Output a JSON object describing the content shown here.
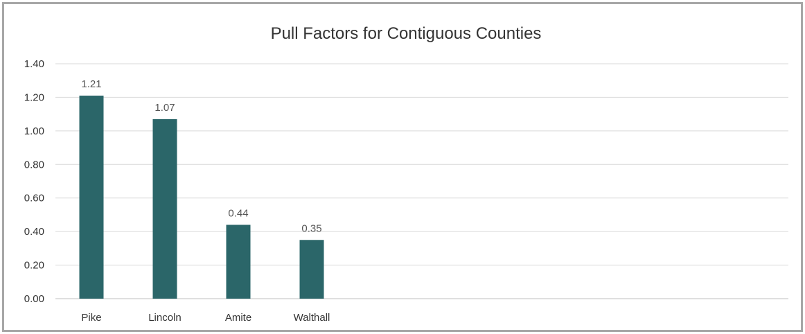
{
  "chart_data": {
    "type": "bar",
    "title": "Pull Factors for Contiguous Counties",
    "xlabel": "",
    "ylabel": "",
    "categories": [
      "Pike",
      "Lincoln",
      "Amite",
      "Walthall"
    ],
    "values": [
      1.21,
      1.07,
      0.44,
      0.35
    ],
    "data_labels": [
      "1.21",
      "1.07",
      "0.44",
      "0.35"
    ],
    "ylim": [
      0,
      1.4
    ],
    "yticks": [
      "0.00",
      "0.20",
      "0.40",
      "0.60",
      "0.80",
      "1.00",
      "1.20",
      "1.40"
    ],
    "grid": true,
    "legend": "none",
    "bar_color": "#2b6669"
  }
}
